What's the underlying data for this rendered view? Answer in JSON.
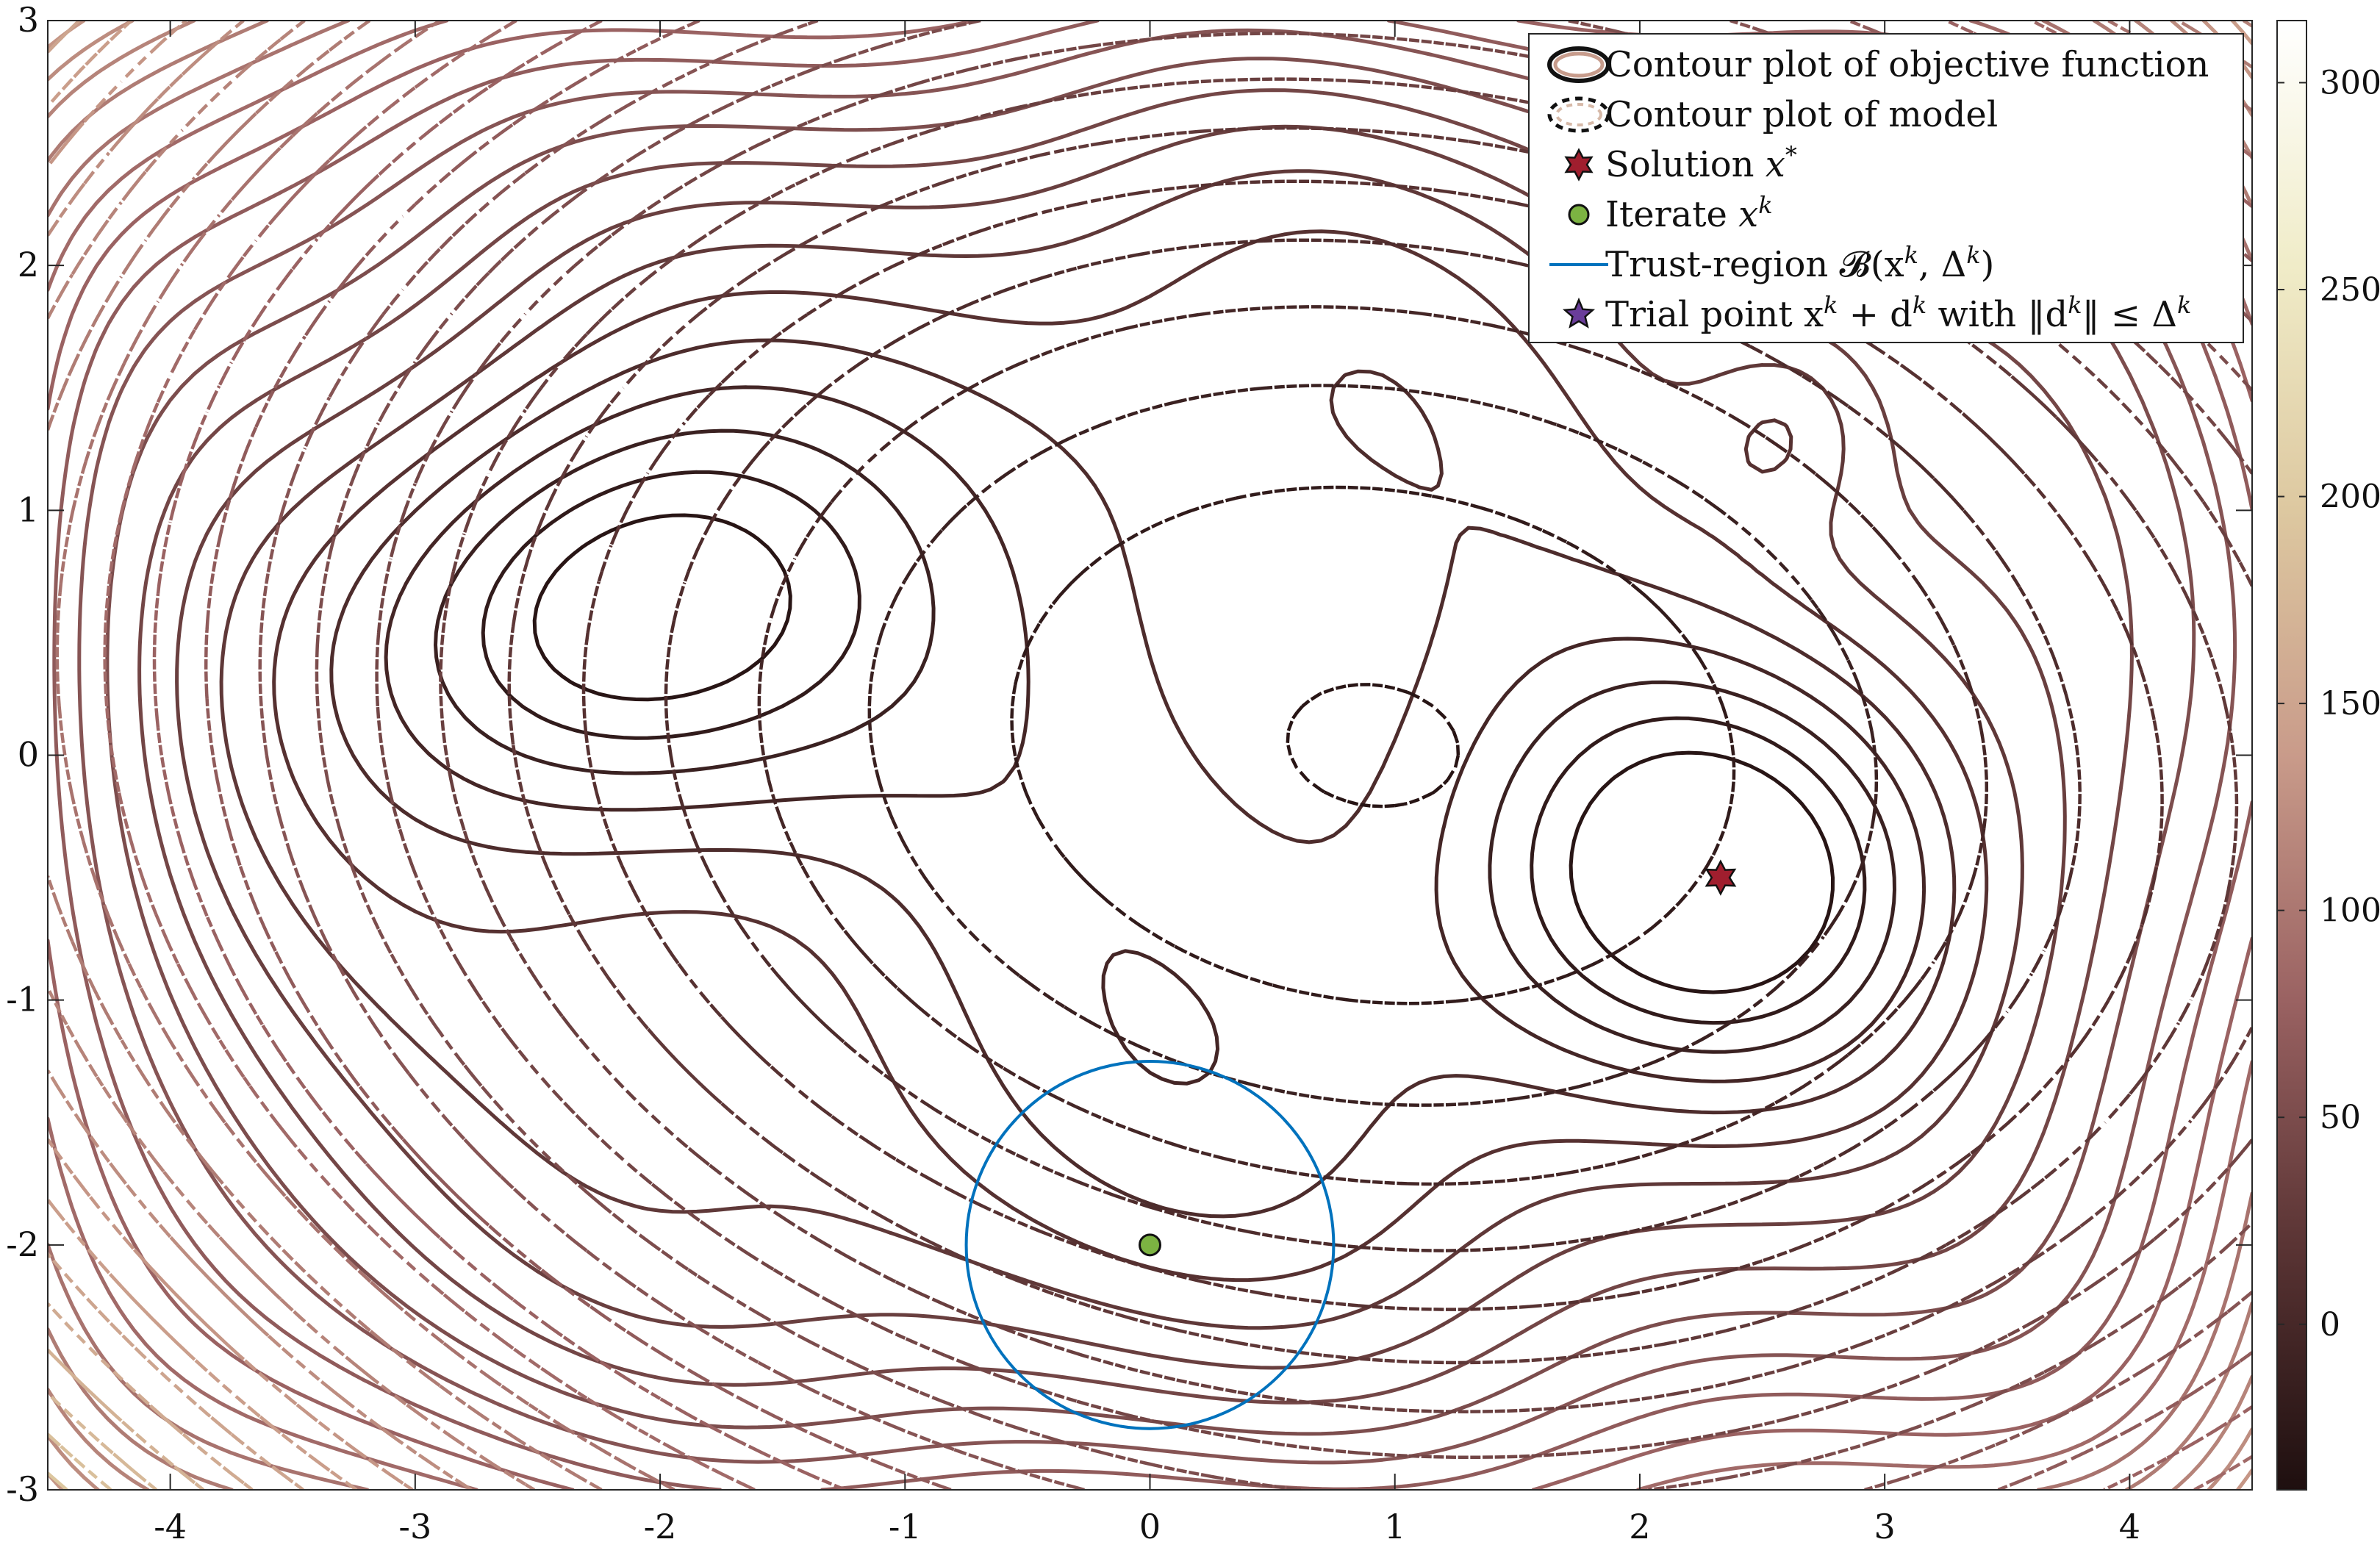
{
  "chart_data": {
    "type": "contour",
    "xlim": [
      -4.5,
      4.5
    ],
    "ylim": [
      -3,
      3
    ],
    "x_ticks": [
      -4,
      -3,
      -2,
      -1,
      0,
      1,
      2,
      3,
      4
    ],
    "y_ticks": [
      3,
      2,
      1,
      0,
      -1,
      -2,
      -3
    ],
    "colorbar": {
      "range": [
        -40,
        315
      ],
      "ticks": [
        300,
        250,
        200,
        150,
        100,
        50,
        0
      ],
      "colormap": [
        "#1e0f0f",
        "#5a3434",
        "#9a6262",
        "#c99b8a",
        "#ddc8a0",
        "#f0ecc8",
        "#ffffff"
      ]
    },
    "objective": {
      "description_source": "legend",
      "minima": [
        {
          "x": -2.2,
          "y": 0.55,
          "value": -30
        },
        {
          "x": 2.3,
          "y": -0.5,
          "value": -25
        },
        {
          "x": 2.6,
          "y": 1.35,
          "value": 10
        }
      ]
    },
    "model_center": {
      "x": 0,
      "y": -2
    },
    "solution": {
      "x": 2.33,
      "y": -0.5
    },
    "iterate": {
      "x": 0,
      "y": -2
    },
    "trust_region": {
      "center": [
        0,
        -2
      ],
      "radius": 0.75
    },
    "legend": {
      "position": "top-right",
      "entries": [
        {
          "id": "objective",
          "label_plain": "Contour plot of objective function"
        },
        {
          "id": "model",
          "label_plain": "Contour plot of model"
        },
        {
          "id": "solution",
          "label_plain": "Solution ",
          "label_math": "x",
          "sup": "*"
        },
        {
          "id": "iterate",
          "label_plain": "Iterate ",
          "label_math": "x",
          "sup": "k"
        },
        {
          "id": "trust",
          "label_plain": "Trust-region 𝓑(x",
          "sup": "k",
          "label_tail": ", Δ",
          "sup2": "k",
          "label_end": ")"
        },
        {
          "id": "trial",
          "label_plain": "Trial point x",
          "sup": "k",
          "label_tail": " + d",
          "sup2": "k",
          "label_end": " with ‖d",
          "sup3": "k",
          "label_end2": "‖ ≤ Δ",
          "sup4": "k"
        }
      ]
    },
    "colors": {
      "solution_marker": "#a01e2e",
      "iterate_marker": "#7cb342",
      "trust_region": "#0072bd",
      "trial_marker": "#6a3d9a",
      "axis": "#262626"
    }
  }
}
